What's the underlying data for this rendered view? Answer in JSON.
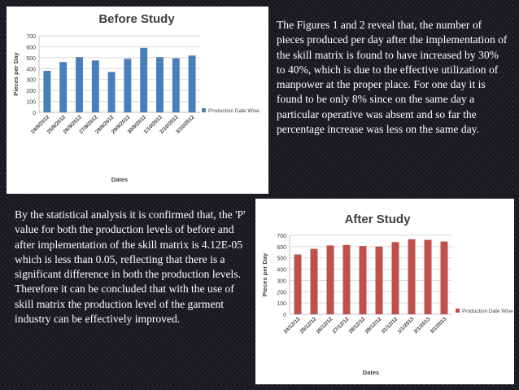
{
  "right_paragraph": "The Figures 1 and 2 reveal that, the number of pieces produced per day after the implementation of the skill matrix is found to have increased by 30% to 40%, which is due to the effective utilization of manpower at the proper place. For one day it is found to be only 8% since on the same day a particular operative was absent and so far the percentage increase was less on the same day.",
  "left_paragraph": "By the statistical analysis it is confirmed that, the 'P' value for both the production levels of before and after implementation of the skill matrix is 4.12E-05 which is less than 0.05, reflecting that there is a significant difference in both the production levels. Therefore it can be concluded that with the use of skill matrix the production level of the garment industry can be effectively improved.",
  "chart_data": [
    {
      "type": "bar",
      "title": "Before Study",
      "xlabel": "Dates",
      "ylabel": "Pieces per Day",
      "categories": [
        "24/9/2012",
        "25/9/2012",
        "26/9/2012",
        "27/9/2012",
        "28/9/2012",
        "29/9/2012",
        "30/9/2012",
        "1/10/2012",
        "2/10/2012",
        "3/10/2012"
      ],
      "series": [
        {
          "name": "Production Date Wise",
          "values": [
            380,
            460,
            505,
            475,
            370,
            490,
            590,
            505,
            495,
            520
          ]
        }
      ],
      "ylim": [
        0,
        700
      ],
      "yticks": [
        0,
        100,
        200,
        300,
        400,
        500,
        600,
        700
      ],
      "color": "#4a7ebb",
      "legend": "right",
      "grid": true
    },
    {
      "type": "bar",
      "title": "After Study",
      "xlabel": "Dates",
      "ylabel": "Pieces per Day",
      "categories": [
        "24/12/12",
        "25/12/12",
        "26/12/12",
        "27/12/12",
        "28/12/12",
        "29/12/12",
        "31/12/12",
        "1/1/2013",
        "2/1/2013",
        "3/1/2013"
      ],
      "series": [
        {
          "name": "Production Date Wise",
          "values": [
            530,
            580,
            610,
            615,
            605,
            600,
            640,
            665,
            660,
            645
          ]
        }
      ],
      "ylim": [
        0,
        700
      ],
      "yticks": [
        0,
        100,
        200,
        300,
        400,
        500,
        600,
        700
      ],
      "color": "#c0504d",
      "legend": "right",
      "grid": true
    }
  ]
}
